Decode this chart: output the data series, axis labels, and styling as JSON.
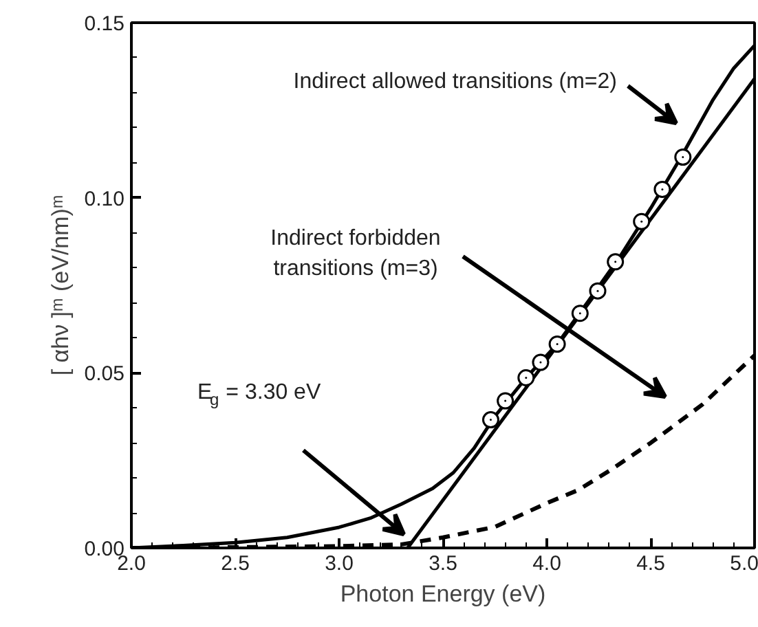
{
  "chart_data": {
    "type": "line",
    "xlabel": "Photon Energy (eV)",
    "ylabel": "[ αhν ]ᵐ (eV/nm)ᵐ",
    "xlim": [
      2.0,
      5.0
    ],
    "ylim": [
      0.0,
      0.15
    ],
    "xticks": [
      {
        "value": 2.0,
        "label": "2.0"
      },
      {
        "value": 2.5,
        "label": "2.5"
      },
      {
        "value": 3.0,
        "label": "3.0"
      },
      {
        "value": 3.5,
        "label": "3.5"
      },
      {
        "value": 4.0,
        "label": "4.0"
      },
      {
        "value": 4.5,
        "label": "4.5"
      },
      {
        "value": 5.0,
        "label": "5.0"
      }
    ],
    "yticks": [
      {
        "value": 0.0,
        "label": "0.00"
      },
      {
        "value": 0.05,
        "label": "0.05"
      },
      {
        "value": 0.1,
        "label": "0.10"
      },
      {
        "value": 0.15,
        "label": "0.15"
      }
    ],
    "grid": false,
    "series": [
      {
        "color": "#000000",
        "line_style": "solid",
        "x": [
          2.0,
          2.25,
          2.5,
          2.75,
          3.0,
          3.15,
          3.3,
          3.45,
          3.55,
          3.65,
          3.75,
          3.9,
          4.05,
          4.2,
          4.35,
          4.5,
          4.65,
          4.8,
          4.9,
          5.0
        ],
        "values": [
          0.0,
          0.0007,
          0.0015,
          0.003,
          0.0059,
          0.0085,
          0.0125,
          0.017,
          0.0215,
          0.0285,
          0.0376,
          0.0486,
          0.0582,
          0.0705,
          0.083,
          0.097,
          0.112,
          0.128,
          0.137,
          0.1435
        ]
      },
      {
        "color": "#000000",
        "line_style": "solid",
        "x": [
          3.33,
          5.0
        ],
        "values": [
          0.0,
          0.134
        ]
      },
      {
        "color": "#000000",
        "line_style": "dashed",
        "x": [
          2.0,
          2.5,
          3.0,
          3.3,
          3.5,
          3.75,
          4.0,
          4.15,
          4.3,
          4.5,
          4.75,
          5.0
        ],
        "values": [
          0.0,
          0.0002,
          0.0005,
          0.001,
          0.003,
          0.006,
          0.0128,
          0.0165,
          0.022,
          0.03,
          0.041,
          0.055
        ]
      },
      {
        "type": "scatter",
        "marker": "circle",
        "color": "#000000",
        "x": [
          3.73,
          3.8,
          3.9,
          3.97,
          4.05,
          4.16,
          4.245,
          4.33,
          4.456,
          4.556,
          4.655
        ],
        "values": [
          0.0366,
          0.042,
          0.0486,
          0.053,
          0.0582,
          0.067,
          0.0734,
          0.0817,
          0.0932,
          0.1024,
          0.1116
        ]
      }
    ],
    "annotations": [
      "Indirect allowed transitions (m=2)",
      "Indirect forbidden\ntransitions (m=3)",
      "E$_{g}$ = 3.30 eV"
    ]
  }
}
